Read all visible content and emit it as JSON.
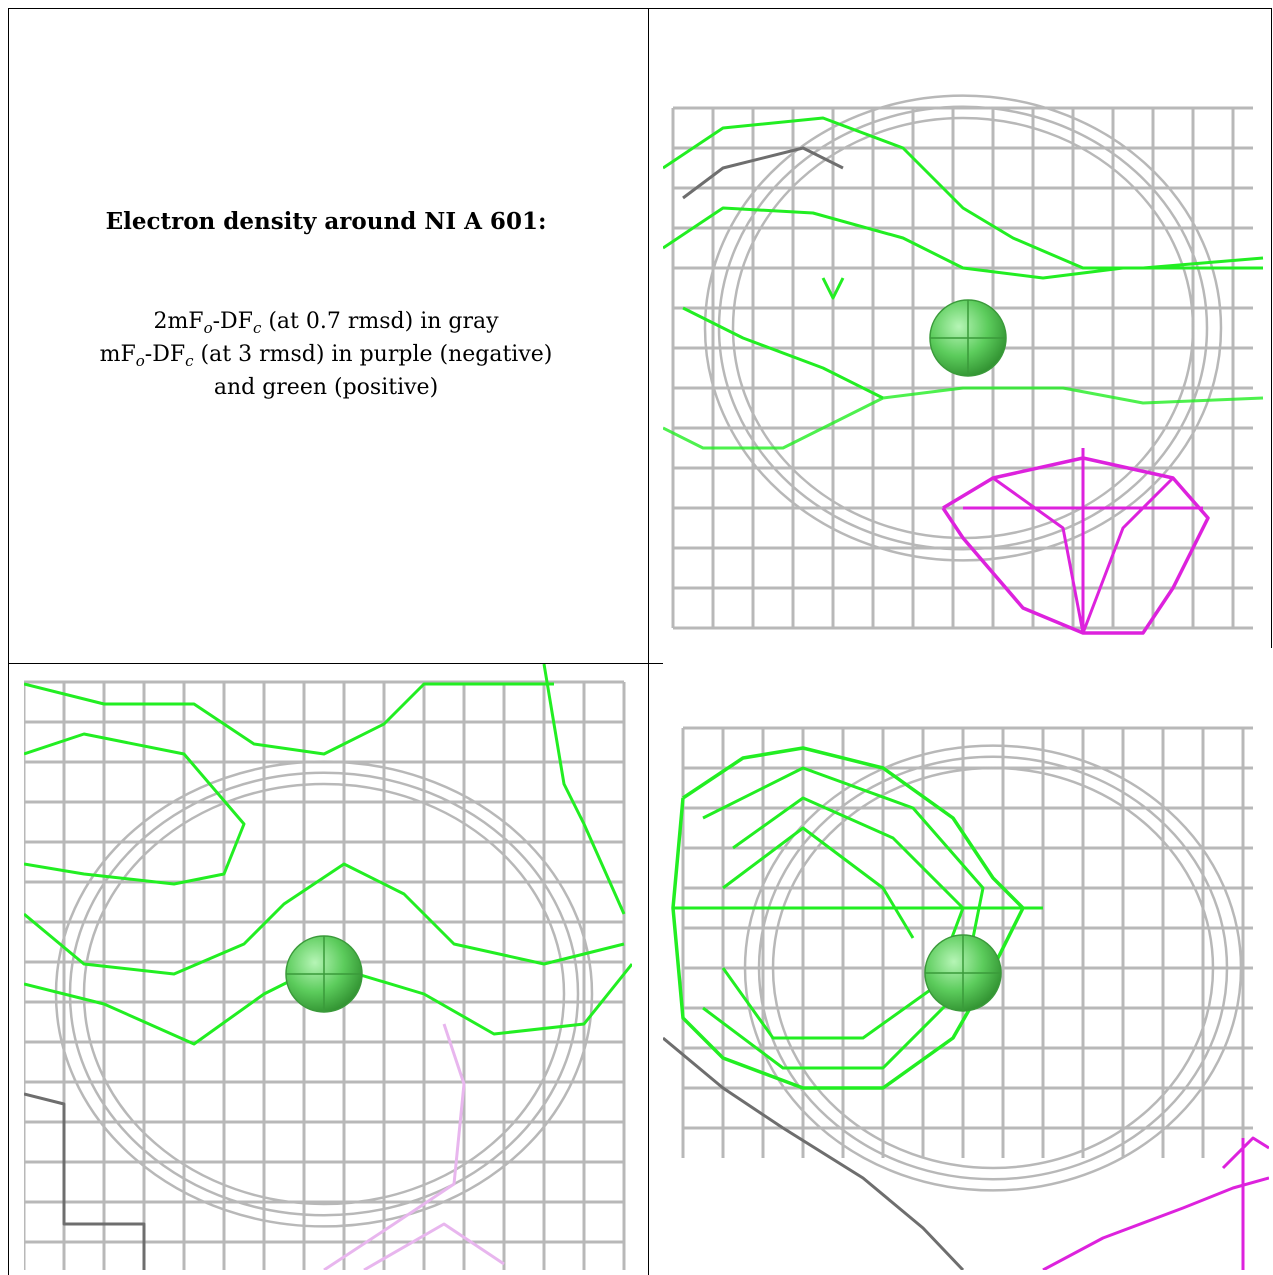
{
  "caption": {
    "title": "Electron density around NI A 601:",
    "line1": {
      "pre": "2mF",
      "sub1": "o",
      "mid": "-DF",
      "sub2": "c",
      "post": " (at 0.7 rmsd) in gray"
    },
    "line2": {
      "pre": "mF",
      "sub1": "o",
      "mid": "-DF",
      "sub2": "c",
      "post": " (at 3 rmsd) in purple (negative)"
    },
    "line3": "and green (positive)"
  },
  "colors": {
    "mesh_gray": "#b8b8b8",
    "mesh_dark": "#6e6e6e",
    "mesh_green": "#22ee22",
    "mesh_purple": "#dd22dd",
    "mesh_purple_faint": "#e8b6ee",
    "atom": "#5ccc5c"
  },
  "icons": {
    "atom": "nickel-atom-sphere"
  }
}
